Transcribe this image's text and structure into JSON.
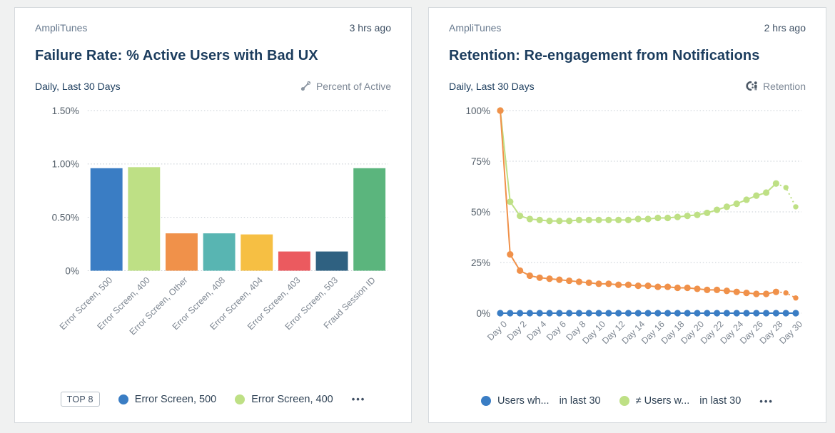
{
  "cards": [
    {
      "source": "AmpliTunes",
      "updated": "3 hrs ago",
      "title": "Failure Rate: % Active Users with Bad UX",
      "range_label": "Daily, Last 30 Days",
      "chart_type_label": "Percent of Active",
      "chart_type_icon": "trend-icon",
      "legend": {
        "badge": "TOP 8",
        "items": [
          {
            "label": "Error Screen, 500",
            "suffix": "",
            "color": "#3a7dc4"
          },
          {
            "label": "Error Screen, 400",
            "suffix": "",
            "color": "#bee085"
          }
        ],
        "more": "•••"
      }
    },
    {
      "source": "AmpliTunes",
      "updated": "2 hrs ago",
      "title": "Retention: Re-engagement from Notifications",
      "range_label": "Daily, Last 30 Days",
      "chart_type_label": "Retention",
      "chart_type_icon": "retention-icon",
      "legend": {
        "badge": "",
        "items": [
          {
            "label": "Users wh...",
            "suffix": "in last 30",
            "color": "#3a7dc4"
          },
          {
            "label": "≠ Users w...",
            "suffix": "in last 30",
            "color": "#bee085"
          }
        ],
        "more": "•••"
      }
    }
  ],
  "chart_data": [
    {
      "type": "bar",
      "title": "Failure Rate: % Active Users with Bad UX",
      "categories": [
        "Error Screen, 500",
        "Error Screen, 400",
        "Error Screen, Other",
        "Error Screen, 408",
        "Error Screen, 404",
        "Error Screen, 403",
        "Error Screen, 503",
        "Fraud Session ID"
      ],
      "values": [
        0.96,
        0.97,
        0.35,
        0.35,
        0.34,
        0.18,
        0.18,
        0.96
      ],
      "bar_colors": [
        "#3a7dc4",
        "#bee085",
        "#f0914a",
        "#58b5b2",
        "#f6bf43",
        "#eb5a5f",
        "#2f6181",
        "#5bb57d"
      ],
      "xlabel": "",
      "ylabel": "",
      "ylim": [
        0,
        1.5
      ],
      "yticks": [
        {
          "value": 0,
          "label": "0%"
        },
        {
          "value": 0.5,
          "label": "0.50%"
        },
        {
          "value": 1,
          "label": "1.00%"
        },
        {
          "value": 1.5,
          "label": "1.50%"
        }
      ],
      "grid": "dotted-horizontal",
      "legend_position": "bottom"
    },
    {
      "type": "line",
      "title": "Retention: Re-engagement from Notifications",
      "x": [
        "Day 0",
        "Day 1",
        "Day 2",
        "Day 3",
        "Day 4",
        "Day 5",
        "Day 6",
        "Day 7",
        "Day 8",
        "Day 9",
        "Day 10",
        "Day 11",
        "Day 12",
        "Day 13",
        "Day 14",
        "Day 15",
        "Day 16",
        "Day 17",
        "Day 18",
        "Day 19",
        "Day 20",
        "Day 21",
        "Day 22",
        "Day 23",
        "Day 24",
        "Day 25",
        "Day 26",
        "Day 27",
        "Day 28",
        "Day 29",
        "Day 30"
      ],
      "x_label_step": 2,
      "xlabel": "",
      "ylabel": "",
      "ylim": [
        0,
        100
      ],
      "yticks": [
        {
          "value": 0,
          "label": "0%"
        },
        {
          "value": 25,
          "label": "25%"
        },
        {
          "value": 50,
          "label": "50%"
        },
        {
          "value": 75,
          "label": "75%"
        },
        {
          "value": 100,
          "label": "100%"
        }
      ],
      "series": [
        {
          "name": "Users wh... in last 30",
          "color": "#3a7dc4",
          "dashed_from": null,
          "values": [
            0,
            0,
            0,
            0,
            0,
            0,
            0,
            0,
            0,
            0,
            0,
            0,
            0,
            0,
            0,
            0,
            0,
            0,
            0,
            0,
            0,
            0,
            0,
            0,
            0,
            0,
            0,
            0,
            0,
            0,
            0
          ]
        },
        {
          "name": "≠ Users w... in last 30",
          "color": "#bee085",
          "dashed_from": 28,
          "values": [
            100,
            55,
            48,
            46.5,
            46,
            45.5,
            45.5,
            45.5,
            46,
            46,
            46,
            46,
            46,
            46,
            46.5,
            46.5,
            47,
            47,
            47.5,
            48,
            48.5,
            49.5,
            51,
            52.5,
            54,
            56,
            58,
            59.5,
            64,
            62,
            52.5
          ]
        },
        {
          "name": "",
          "color": "#f0914a",
          "dashed_from": 28,
          "values": [
            100,
            29,
            21,
            18.5,
            17.5,
            17,
            16.5,
            16,
            15.5,
            15,
            14.5,
            14.5,
            14,
            14,
            13.5,
            13.5,
            13,
            13,
            12.5,
            12.5,
            12,
            11.5,
            11.5,
            11,
            10.5,
            10,
            9.5,
            9.5,
            10.5,
            10,
            7.5
          ]
        }
      ],
      "grid": "dotted-horizontal",
      "legend_position": "bottom"
    }
  ]
}
